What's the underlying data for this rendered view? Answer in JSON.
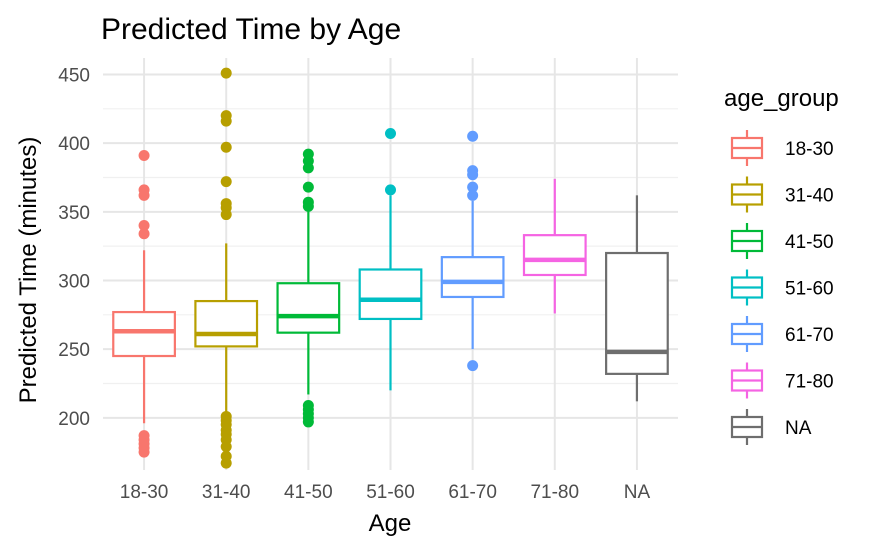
{
  "chart_data": {
    "type": "boxplot",
    "title": "Predicted Time by Age",
    "xlabel": "Age",
    "ylabel": "Predicted Time (minutes)",
    "ylim": [
      162,
      462
    ],
    "y_ticks": [
      200,
      250,
      300,
      350,
      400,
      450
    ],
    "grid": true,
    "legend": {
      "title": "age_group",
      "position": "right"
    },
    "categories": [
      "18-30",
      "31-40",
      "41-50",
      "51-60",
      "61-70",
      "71-80",
      "NA"
    ],
    "series": [
      {
        "name": "18-30",
        "color": "#F8766D",
        "q1": 245,
        "median": 263,
        "q3": 277,
        "whisker_low": 196,
        "whisker_high": 322,
        "outliers": [
          391,
          366,
          362,
          340,
          334,
          187,
          184,
          181,
          178,
          175
        ]
      },
      {
        "name": "31-40",
        "color": "#B79F00",
        "q1": 252,
        "median": 261,
        "q3": 285,
        "whisker_low": 204,
        "whisker_high": 327,
        "outliers": [
          451,
          420,
          416,
          397,
          372,
          356,
          353,
          348,
          201,
          198,
          195,
          191,
          188,
          184,
          179,
          172,
          167
        ]
      },
      {
        "name": "41-50",
        "color": "#00BA38",
        "q1": 262,
        "median": 274,
        "q3": 298,
        "whisker_low": 217,
        "whisker_high": 351,
        "outliers": [
          392,
          387,
          382,
          368,
          357,
          354,
          209,
          206,
          203,
          200,
          197
        ]
      },
      {
        "name": "51-60",
        "color": "#00BFC4",
        "q1": 272,
        "median": 286,
        "q3": 308,
        "whisker_low": 220,
        "whisker_high": 362,
        "outliers": [
          407,
          366
        ]
      },
      {
        "name": "61-70",
        "color": "#619CFF",
        "q1": 288,
        "median": 299,
        "q3": 317,
        "whisker_low": 250,
        "whisker_high": 358,
        "outliers": [
          405,
          380,
          377,
          368,
          362,
          238
        ]
      },
      {
        "name": "71-80",
        "color": "#F564E3",
        "q1": 304,
        "median": 315,
        "q3": 333,
        "whisker_low": 276,
        "whisker_high": 374,
        "outliers": []
      },
      {
        "name": "NA",
        "color": "#6E6E6E",
        "q1": 232,
        "median": 248,
        "q3": 320,
        "whisker_low": 212,
        "whisker_high": 362,
        "outliers": []
      }
    ]
  }
}
